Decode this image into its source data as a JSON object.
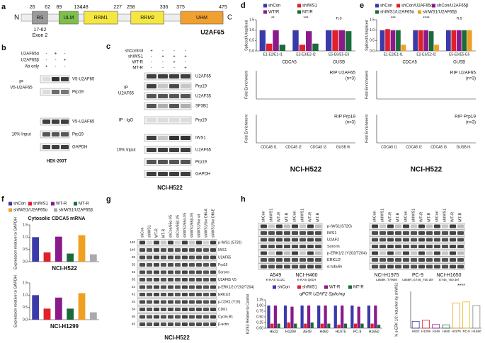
{
  "panel_labels": [
    "a",
    "b",
    "c",
    "d",
    "e",
    "f",
    "g",
    "h"
  ],
  "a": {
    "n": "N",
    "c": "C",
    "numbers": [
      26,
      62,
      89,
      134,
      148,
      227,
      258,
      336,
      375,
      475
    ],
    "domains": [
      "RS",
      "ULM",
      "RRM1",
      "RRM2",
      "UHM"
    ],
    "exon": "17-62",
    "exon_name": "Exon 2",
    "protein": "U2AF65"
  },
  "b": {
    "rows": [
      {
        "label": "U2AF65α",
        "signs": [
          "-",
          "+",
          "-"
        ]
      },
      {
        "label": "U2AF65β",
        "signs": [
          "-",
          "-",
          "+"
        ]
      },
      {
        "label": "Ab only",
        "signs": [
          "+",
          "-",
          "-"
        ]
      }
    ],
    "ip": "IP",
    "ip_target": "V5-U2AF65",
    "input": "10% Input",
    "bands": [
      "V5-U2AF65",
      "Prp19",
      "V5-U2AF65",
      "Prp19",
      "GAPDH"
    ],
    "cell": "HEK-293T"
  },
  "c": {
    "rows": [
      {
        "label": "shControl",
        "signs": [
          "+",
          "-",
          "-",
          "-"
        ]
      },
      {
        "label": "shIWS1",
        "signs": [
          "-",
          "+",
          "+",
          "+"
        ]
      },
      {
        "label": "WT-R",
        "signs": [
          "-",
          "-",
          "+",
          "-"
        ]
      },
      {
        "label": "MT-R",
        "signs": [
          "-",
          "-",
          "-",
          "+"
        ]
      }
    ],
    "ip": "IP",
    "ip_target": "U2AF65",
    "igg": "IP : IgG",
    "input": "10% Input",
    "bands": [
      "U2AF65",
      "Prp19",
      "U2AF35",
      "SF3B1",
      "Prp19",
      "IWS1",
      "U2AF65",
      "Prp19",
      "GAPDH"
    ],
    "cell": "NCI-H522"
  },
  "d": {
    "top": {
      "ylabel": "Spliced/Unspliced",
      "categories": [
        "E1-E2/E1-I1",
        "E2-E3/E2-I2",
        "E5-E6/E5-E6"
      ],
      "genes": [
        "CDCA5",
        "GUSB"
      ],
      "series": [
        {
          "name": "shCon",
          "color": "#3a3aa8",
          "values": [
            1.0,
            1.0,
            1.0
          ]
        },
        {
          "name": "shIWS1",
          "color": "#e0202a",
          "values": [
            0.35,
            0.3,
            1.0
          ]
        },
        {
          "name": "WT/R",
          "color": "#8b1a8b",
          "values": [
            1.0,
            0.95,
            1.0
          ]
        },
        {
          "name": "MT/R",
          "color": "#1a6b3a",
          "values": [
            0.3,
            0.35,
            0.95
          ]
        }
      ],
      "ylim": [
        0,
        1.5
      ],
      "yticks": [
        {
          "value": 0,
          "label": "0.0"
        },
        0.5,
        {
          "value": 1,
          "label": "1.0"
        },
        1.5
      ],
      "annotations": [
        "**",
        "***",
        "n.s"
      ]
    },
    "rip": [
      {
        "title": "RIP U2AF65",
        "n": "(n=3)"
      },
      {
        "title": "RIP Prp19",
        "n": "(n=3)"
      }
    ],
    "rip_ylabel": "Fold Enrichment",
    "rip_categories": [
      "CDCA5 I1",
      "CDCA5 I2",
      "CDCA5 I3",
      "GUSB I6"
    ],
    "cell": "NCI-H522"
  },
  "e": {
    "top": {
      "ylabel": "Spliced/Unspliced",
      "categories": [
        "E1-E2/E1-I1",
        "E2-E3/E2-I2",
        "E5-E6/E5-E6"
      ],
      "genes": [
        "CDCA5",
        "GUSB"
      ],
      "series": [
        {
          "name": "shCon",
          "color": "#3a3aa8",
          "values": [
            1.0,
            1.0,
            1.0
          ]
        },
        {
          "name": "shCon/U2AF65α",
          "color": "#e0202a",
          "values": [
            1.05,
            1.0,
            1.0
          ]
        },
        {
          "name": "shCon/U2AF65β",
          "color": "#8b1a8b",
          "values": [
            1.0,
            1.0,
            1.0
          ]
        },
        {
          "name": "shIWS1/U2AF65α",
          "color": "#1a6b3a",
          "values": [
            1.0,
            0.95,
            1.0
          ]
        },
        {
          "name": "shIWS1/U2AF65β",
          "color": "#f0a020",
          "values": [
            0.3,
            0.3,
            1.0
          ]
        }
      ],
      "ylim": [
        0,
        1.5
      ],
      "yticks": [
        {
          "value": 0,
          "label": "0.0"
        },
        0.5,
        {
          "value": 1,
          "label": "1.0"
        },
        1.5
      ],
      "annotations": [
        "***",
        "****",
        "n.s"
      ]
    },
    "rip": [
      {
        "title": "RIP U2AF65",
        "n": "(n=3)"
      },
      {
        "title": "RIP Prp19",
        "n": "(n=3)"
      }
    ],
    "rip_ylabel": "Fold Enrichment",
    "rip_categories": [
      "CDCA5 I1",
      "CDCA5 I2",
      "CDCA5 I3",
      "GUSB I6"
    ],
    "cell": "NCI-H522"
  },
  "f": {
    "title": "Cytosolic CDCA5 mRNA",
    "ylabel": "Expression relative to GAPDH",
    "series": [
      {
        "name": "shCon",
        "color": "#3a3aa8"
      },
      {
        "name": "shIWS1",
        "color": "#e0202a"
      },
      {
        "name": "WT-R",
        "color": "#8b1a8b"
      },
      {
        "name": "MT-R",
        "color": "#1a6b3a"
      },
      {
        "name": "shIWS1/U2AF65α",
        "color": "#f0a020"
      },
      {
        "name": "shIWS1/U2AF65β",
        "color": "#aaaaaa"
      }
    ],
    "ylim": [
      0,
      1.5
    ],
    "yticks": [
      {
        "value": 0,
        "label": "0.0"
      },
      0.5,
      {
        "value": 1,
        "label": "1.0"
      },
      1.5
    ],
    "charts": [
      {
        "label": "NCI-H522",
        "values": [
          1.0,
          0.38,
          1.02,
          0.33,
          1.08,
          0.3
        ]
      },
      {
        "label": "NCI-H1299",
        "values": [
          1.0,
          0.45,
          0.9,
          0.45,
          1.08,
          0.3
        ]
      }
    ]
  },
  "g": {
    "lanes": [
      "shCon",
      "shIWS1",
      "WT-R",
      "MT-R",
      "shCon/65α-V5",
      "shCon/65β-V5",
      "shIWS1/65α-V5",
      "shIWS1/65β-V5",
      "shIWS1/Sor wt",
      "shIWS1/Sor DM-A",
      "shIWS1/Sor DM-E"
    ],
    "bands": [
      "p-IWS1 (S720)",
      "IWS1",
      "U2AF65",
      "Prp19",
      "Sororin",
      "U2AF65 V5",
      "p-ERK1/2 (Y202/T204)",
      "ERK1/2",
      "p-CDK1 (Y15)",
      "CDK1",
      "Cyclin B1",
      "β-actin"
    ],
    "mw": [
      "140",
      "140",
      "65",
      "55",
      "46",
      "65",
      "42",
      "42",
      "34",
      "34",
      "55",
      "45"
    ],
    "cell": "NCI-H522"
  },
  "h": {
    "lanes": [
      "shCon",
      "shIWS1",
      "WT-R",
      "MT-R"
    ],
    "bands": [
      "p-IWS1(S720)",
      "IWS1",
      "U2AF2",
      "Sororin",
      "p-ERK1/2 (Y202/T204)",
      "ERK1/2",
      "α-tubulin"
    ],
    "cells": [
      {
        "name": "A549",
        "mutation": "K-RAS G12C"
      },
      {
        "name": "NCI-H460",
        "mutation": "K-RAS Q61H"
      },
      {
        "name": "NCI-H1975",
        "mutation": "L858R, T790M"
      },
      {
        "name": "PC-9",
        "mutation": "L858R, E746_750 del"
      },
      {
        "name": "NCI-H1650",
        "mutation": "E746_750 del"
      }
    ],
    "splicing": {
      "title": "qPCR U2AF2 Splicing",
      "ylabel": "E2/E3 Relative to Control",
      "categories": [
        "H522",
        "H1299",
        "A549",
        "H460",
        "H1975",
        "PC-9",
        "H1650"
      ],
      "series": [
        {
          "name": "shCon",
          "color": "#3a3aa8",
          "values": [
            1.0,
            1.0,
            1.0,
            1.0,
            1.0,
            1.0,
            1.0
          ]
        },
        {
          "name": "shIWS1",
          "color": "#e0202a",
          "values": [
            0.2,
            0.25,
            0.2,
            0.2,
            0.15,
            0.2,
            0.2
          ]
        },
        {
          "name": "WT-R",
          "color": "#8b1a8b",
          "values": [
            1.0,
            0.95,
            1.0,
            1.0,
            1.0,
            0.95,
            1.0
          ]
        },
        {
          "name": "MT-R",
          "color": "#1a6b3a",
          "values": [
            0.2,
            0.2,
            0.25,
            0.2,
            0.2,
            0.2,
            0.15
          ]
        }
      ],
      "ylim": [
        0,
        1.25
      ],
      "yticks": [
        {
          "value": 0,
          "label": "0.00"
        },
        0.25,
        {
          "value": 0.5,
          "label": "0.50"
        },
        0.75,
        {
          "value": 1,
          "label": "1.00"
        },
        1.25
      ]
    },
    "perk": {
      "ylabel": "% p-ERK 1/2 reduction by shIWS1",
      "categories": [
        "H522",
        "H1299",
        "A549",
        "H460",
        "H1975",
        "PC-9",
        "H1650"
      ],
      "values": [
        13,
        15,
        7,
        6,
        48,
        50,
        43
      ],
      "colors": [
        "#3a3aa8",
        "#e0202a",
        "#8b1a8b",
        "#1a6b3a",
        "#f0a020",
        "#e8c020",
        "#888888"
      ],
      "ylim": [
        0,
        70
      ],
      "annotation": "****"
    }
  }
}
